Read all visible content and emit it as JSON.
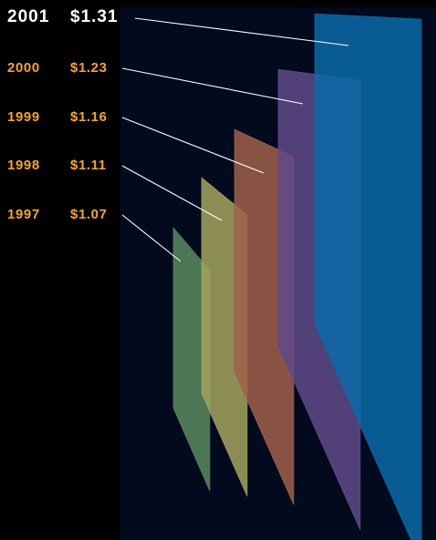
{
  "chart_data": {
    "type": "bar",
    "categories": [
      "1997",
      "1998",
      "1999",
      "2000",
      "2001"
    ],
    "values": [
      1.07,
      1.11,
      1.16,
      1.23,
      1.31
    ],
    "value_labels": [
      "$1.07",
      "$1.11",
      "$1.16",
      "$1.23",
      "$1.31"
    ],
    "highlight_category": "2001",
    "colors": {
      "background": "#000000",
      "panel": "#020a1e",
      "label_default": "#f5a623",
      "label_highlight": "#ffffff",
      "leader_line": "#ffffff",
      "bars": [
        "#5a8a5e",
        "#a3a45e",
        "#a0604a",
        "#604a8a",
        "#0a6aa8"
      ]
    }
  }
}
